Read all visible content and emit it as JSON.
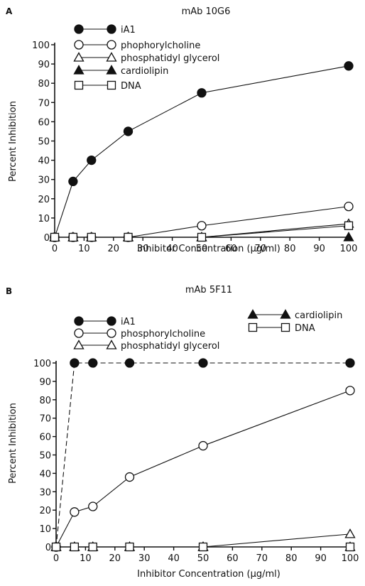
{
  "chart_data": [
    {
      "panel": "A",
      "type": "line",
      "title": "mAb 10G6",
      "xlabel": "Inhibitor Concentration (µg/ml)",
      "ylabel": "Percent Inhibition",
      "xlim": [
        0,
        100
      ],
      "ylim": [
        0,
        100
      ],
      "xticks": [
        0,
        10,
        20,
        30,
        40,
        50,
        60,
        70,
        80,
        90,
        100
      ],
      "yticks": [
        0,
        10,
        20,
        30,
        40,
        50,
        60,
        70,
        80,
        90,
        100
      ],
      "legend_position": "top-left",
      "series": [
        {
          "name": "iA1",
          "marker": "circle",
          "filled": true,
          "x": [
            0,
            6.25,
            12.5,
            25,
            50,
            100
          ],
          "values": [
            0,
            29,
            40,
            55,
            75,
            89
          ]
        },
        {
          "name": "phophorylcholine",
          "marker": "circle",
          "filled": false,
          "x": [
            0,
            6.25,
            12.5,
            25,
            50,
            100
          ],
          "values": [
            0,
            0,
            0,
            0,
            6,
            16
          ]
        },
        {
          "name": "phosphatidyl glycerol",
          "marker": "triangle",
          "filled": false,
          "x": [
            0,
            6.25,
            12.5,
            25,
            50,
            100
          ],
          "values": [
            0,
            0,
            0,
            0,
            0,
            7
          ]
        },
        {
          "name": "cardiolipin",
          "marker": "triangle",
          "filled": true,
          "x": [
            0,
            6.25,
            12.5,
            25,
            50,
            100
          ],
          "values": [
            0,
            0,
            0,
            0,
            0,
            0
          ]
        },
        {
          "name": "DNA",
          "marker": "square",
          "filled": false,
          "x": [
            0,
            6.25,
            12.5,
            25,
            50,
            100
          ],
          "values": [
            0,
            0,
            0,
            0,
            0,
            6
          ]
        }
      ]
    },
    {
      "panel": "B",
      "type": "line",
      "title": "mAb 5F11",
      "xlabel": "Inhibitor Concentration (µg/ml)",
      "ylabel": "Percent Inhibition",
      "xlim": [
        0,
        100
      ],
      "ylim": [
        0,
        100
      ],
      "xticks": [
        0,
        10,
        20,
        30,
        40,
        50,
        60,
        70,
        80,
        90,
        100
      ],
      "yticks": [
        0,
        10,
        20,
        30,
        40,
        50,
        60,
        70,
        80,
        90,
        100
      ],
      "legend_position": "top",
      "series": [
        {
          "name": "iA1",
          "marker": "circle",
          "filled": true,
          "x": [
            0,
            6.25,
            12.5,
            25,
            50,
            100
          ],
          "values": [
            0,
            100,
            100,
            100,
            100,
            100
          ]
        },
        {
          "name": "phosphorylcholine",
          "marker": "circle",
          "filled": false,
          "x": [
            0,
            6.25,
            12.5,
            25,
            50,
            100
          ],
          "values": [
            0,
            19,
            22,
            38,
            55,
            85
          ]
        },
        {
          "name": "phosphatidyl glycerol",
          "marker": "triangle",
          "filled": false,
          "x": [
            0,
            6.25,
            12.5,
            25,
            50,
            100
          ],
          "values": [
            0,
            0,
            0,
            0,
            0,
            7
          ]
        },
        {
          "name": "cardiolipin",
          "marker": "triangle",
          "filled": true,
          "x": [
            0,
            6.25,
            12.5,
            25,
            50,
            100
          ],
          "values": [
            0,
            0,
            0,
            0,
            0,
            0
          ]
        },
        {
          "name": "DNA",
          "marker": "square",
          "filled": false,
          "x": [
            0,
            6.25,
            12.5,
            25,
            50,
            100
          ],
          "values": [
            0,
            0,
            0,
            0,
            0,
            0
          ]
        }
      ]
    }
  ]
}
